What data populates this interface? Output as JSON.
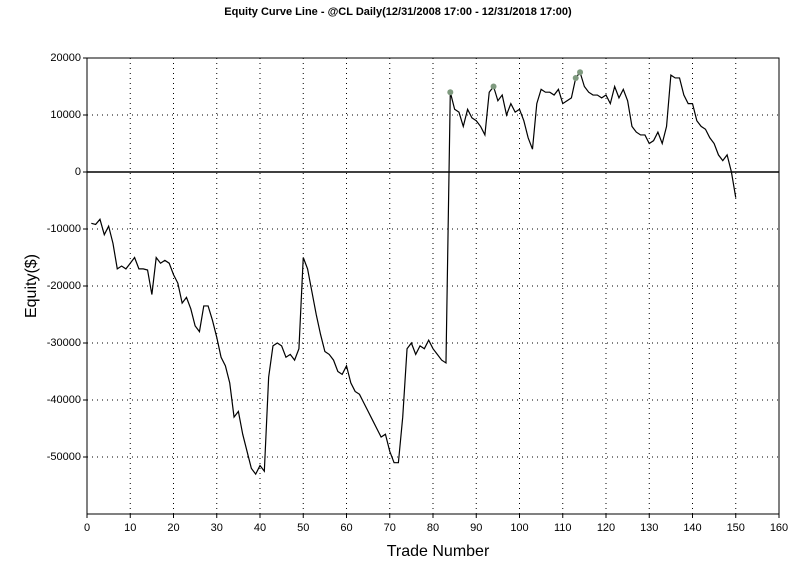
{
  "chart_data": {
    "type": "line",
    "title": "Equity Curve Line - @CL Daily(12/31/2008 17:00 - 12/31/2018 17:00)",
    "x_label": "Trade Number",
    "y_label": "Equity($)",
    "x": [
      1,
      2,
      3,
      4,
      5,
      6,
      7,
      8,
      9,
      10,
      11,
      12,
      13,
      14,
      15,
      16,
      17,
      18,
      19,
      20,
      21,
      22,
      23,
      24,
      25,
      26,
      27,
      28,
      29,
      30,
      31,
      32,
      33,
      34,
      35,
      36,
      37,
      38,
      39,
      40,
      41,
      42,
      43,
      44,
      45,
      46,
      47,
      48,
      49,
      50,
      51,
      52,
      53,
      54,
      55,
      56,
      57,
      58,
      59,
      60,
      61,
      62,
      63,
      64,
      65,
      66,
      67,
      68,
      69,
      70,
      71,
      72,
      73,
      74,
      75,
      76,
      77,
      78,
      79,
      80,
      81,
      82,
      83,
      84,
      85,
      86,
      87,
      88,
      89,
      90,
      91,
      92,
      93,
      94,
      95,
      96,
      97,
      98,
      99,
      100,
      101,
      102,
      103,
      104,
      105,
      106,
      107,
      108,
      109,
      110,
      111,
      112,
      113,
      114,
      115,
      116,
      117,
      118,
      119,
      120,
      121,
      122,
      123,
      124,
      125,
      126,
      127,
      128,
      129,
      130,
      131,
      132,
      133,
      134,
      135,
      136,
      137,
      138,
      139,
      140,
      141,
      142,
      143,
      144,
      145,
      146,
      147,
      148,
      149,
      150
    ],
    "series": [
      {
        "color": "#000000",
        "values": [
          -9000,
          -9200,
          -8300,
          -11000,
          -9500,
          -12500,
          -17000,
          -16500,
          -17000,
          -16000,
          -15000,
          -17000,
          -17000,
          -17200,
          -21500,
          -15000,
          -16000,
          -15500,
          -16000,
          -18000,
          -19500,
          -23000,
          -22000,
          -24000,
          -27000,
          -28000,
          -23500,
          -23500,
          -26000,
          -29000,
          -32500,
          -34000,
          -37000,
          -43000,
          -42000,
          -46000,
          -49000,
          -52000,
          -53000,
          -51500,
          -52500,
          -36000,
          -30500,
          -30000,
          -30500,
          -32500,
          -32000,
          -33000,
          -31000,
          -15000,
          -17000,
          -21000,
          -25000,
          -28500,
          -31500,
          -32000,
          -33000,
          -35000,
          -35500,
          -34000,
          -37000,
          -38500,
          -39000,
          -40500,
          -42000,
          -43500,
          -45000,
          -46500,
          -46000,
          -49000,
          -51000,
          -51000,
          -43000,
          -31000,
          -30000,
          -32000,
          -30500,
          -31000,
          -29500,
          -31000,
          -32000,
          -33000,
          -33500,
          14000,
          11000,
          10500,
          8000,
          11000,
          9500,
          9000,
          8000,
          6500,
          14000,
          15000,
          12500,
          13500,
          10000,
          12000,
          10500,
          11000,
          9000,
          6000,
          4000,
          12000,
          14500,
          14000,
          14000,
          13500,
          14500,
          12000,
          12500,
          13000,
          16500,
          17500,
          15000,
          14000,
          13500,
          13500,
          13000,
          13500,
          12000,
          15000,
          13000,
          14500,
          12500,
          8000,
          7000,
          6500,
          6500,
          5000,
          5500,
          7000,
          5000,
          8000,
          17000,
          16500,
          16500,
          13500,
          12000,
          12000,
          9000,
          8000,
          7500,
          6000,
          5000,
          3000,
          2000,
          3000,
          0,
          -4500
        ]
      },
      {
        "type": "scatter",
        "color": "#7f9a7f",
        "x": [
          84,
          94,
          113,
          114
        ],
        "values": [
          14000,
          15000,
          16500,
          17500
        ]
      }
    ],
    "xlim": [
      0,
      160
    ],
    "xticks": [
      0,
      10,
      20,
      30,
      40,
      50,
      60,
      70,
      80,
      90,
      100,
      110,
      120,
      130,
      140,
      150,
      160
    ],
    "ylim": [
      -60000,
      20000
    ],
    "yticks": [
      -50000,
      -40000,
      -30000,
      -20000,
      -10000,
      0,
      10000,
      20000
    ],
    "grid": true
  }
}
